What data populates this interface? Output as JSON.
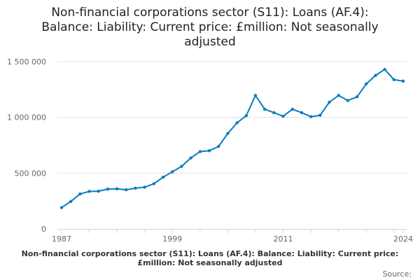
{
  "chart_data": {
    "type": "line",
    "title": "Non-financial corporations sector (S11): Loans (AF.4): Balance: Liability: Current price: £million: Not seasonally adjusted",
    "caption": "Non-financial corporations sector (S11): Loans (AF.4): Balance: Liability: Current price: £million: Not seasonally adjusted",
    "source_label": "Source:",
    "xlabel": "",
    "ylabel": "",
    "x": [
      1987,
      1988,
      1989,
      1990,
      1991,
      1992,
      1993,
      1994,
      1995,
      1996,
      1997,
      1998,
      1999,
      2000,
      2001,
      2002,
      2003,
      2004,
      2005,
      2006,
      2007,
      2008,
      2009,
      2010,
      2011,
      2012,
      2013,
      2014,
      2015,
      2016,
      2017,
      2018,
      2019,
      2020,
      2021,
      2022,
      2023,
      2024
    ],
    "series": [
      {
        "values": [
          191000,
          246000,
          313000,
          336000,
          338000,
          357000,
          359000,
          351000,
          365000,
          374000,
          405000,
          464000,
          512000,
          561000,
          636000,
          693000,
          701000,
          739000,
          856000,
          951000,
          1015000,
          1197000,
          1073000,
          1042000,
          1010000,
          1073000,
          1042000,
          1006000,
          1019000,
          1136000,
          1197000,
          1151000,
          1184000,
          1300000,
          1376000,
          1430000,
          1338000,
          1325000
        ]
      }
    ],
    "ylim": [
      0,
      1500000
    ],
    "yticks": [
      0,
      500000,
      1000000,
      1500000
    ],
    "ytick_labels": [
      "0",
      "500 000",
      "1 000 000",
      "1 500 000"
    ],
    "xtick_labels": [
      "1987",
      "1999",
      "2011",
      "2024"
    ],
    "grid": true,
    "line_color": "#0a7cc1"
  }
}
